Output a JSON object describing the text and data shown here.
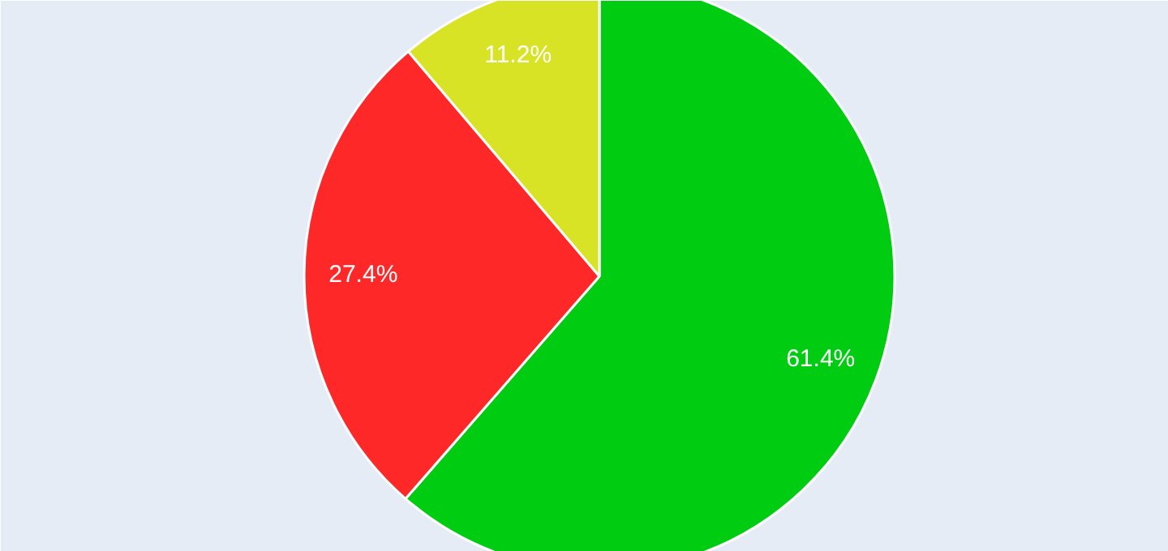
{
  "chart_data": {
    "type": "pie",
    "categories": [
      null,
      null,
      null
    ],
    "values": [
      61.4,
      27.4,
      11.2
    ],
    "colors": [
      "#00cc11",
      "#ff2828",
      "#d9e325"
    ],
    "value_labels": [
      "61.4%",
      "27.4%",
      "11.2%"
    ]
  }
}
